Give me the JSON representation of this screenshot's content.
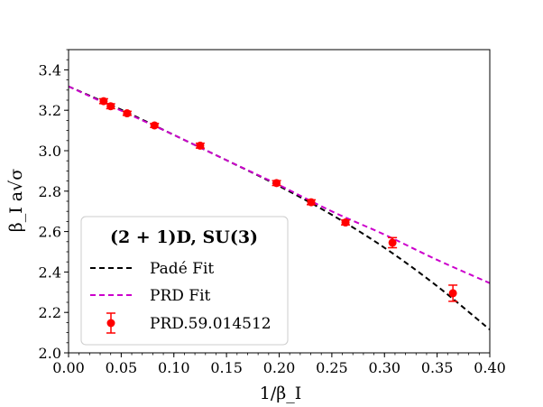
{
  "chart_data": {
    "type": "scatter",
    "title": "",
    "xlabel": "1/β_I",
    "ylabel": "β_I a√σ",
    "xlim": [
      0.0,
      0.4
    ],
    "ylim": [
      2.0,
      3.5
    ],
    "x_ticks": [
      "0.00",
      "0.05",
      "0.10",
      "0.15",
      "0.20",
      "0.25",
      "0.30",
      "0.35",
      "0.40"
    ],
    "y_ticks": [
      "2.0",
      "2.2",
      "2.4",
      "2.6",
      "2.8",
      "3.0",
      "3.2",
      "3.4"
    ],
    "x_tick_values": [
      0.0,
      0.05,
      0.1,
      0.15,
      0.2,
      0.25,
      0.3,
      0.35,
      0.4
    ],
    "y_tick_values": [
      2.0,
      2.2,
      2.4,
      2.6,
      2.8,
      3.0,
      3.2,
      3.4
    ],
    "legend": {
      "title": "(2 + 1)D, SU(3)",
      "placement": "lower-left",
      "entries": [
        "Padé Fit",
        "PRD Fit",
        "PRD.59.014512"
      ]
    },
    "series": [
      {
        "name": "PRD.59.014512",
        "kind": "errorbar",
        "color": "#ff0000",
        "x": [
          0.0333,
          0.04,
          0.0556,
          0.0816,
          0.125,
          0.1975,
          0.2304,
          0.263,
          0.3076,
          0.365
        ],
        "y": [
          3.245,
          3.22,
          3.185,
          3.125,
          3.025,
          2.84,
          2.745,
          2.645,
          2.545,
          2.295
        ],
        "yerr": [
          0.012,
          0.012,
          0.01,
          0.01,
          0.012,
          0.012,
          0.012,
          0.012,
          0.025,
          0.04
        ]
      },
      {
        "name": "Padé Fit",
        "kind": "line",
        "color": "#000000",
        "dash": "dashed",
        "x": [
          0.0,
          0.05,
          0.1,
          0.15,
          0.2,
          0.25,
          0.3,
          0.35,
          0.4
        ],
        "y": [
          3.318,
          3.203,
          3.078,
          2.953,
          2.825,
          2.683,
          2.52,
          2.33,
          2.115
        ]
      },
      {
        "name": "PRD Fit",
        "kind": "line",
        "color": "#cc00cc",
        "dash": "dashed",
        "x": [
          0.0,
          0.05,
          0.1,
          0.15,
          0.2,
          0.25,
          0.3,
          0.35,
          0.4
        ],
        "y": [
          3.318,
          3.198,
          3.078,
          2.953,
          2.83,
          2.7,
          2.585,
          2.46,
          2.345
        ]
      }
    ]
  }
}
